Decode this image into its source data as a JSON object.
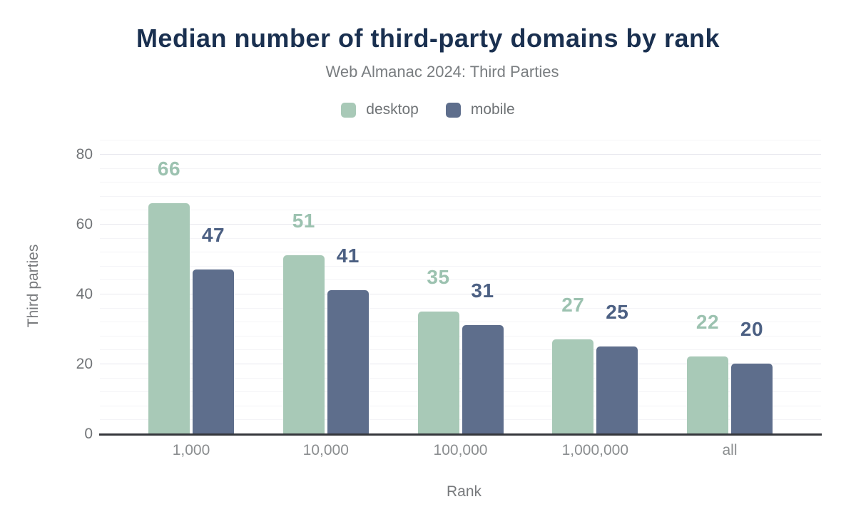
{
  "chart_data": {
    "type": "bar",
    "title": "Median number of third-party domains by rank",
    "subtitle": "Web Almanac 2024: Third Parties",
    "xlabel": "Rank",
    "ylabel": "Third parties",
    "categories": [
      "1,000",
      "10,000",
      "100,000",
      "1,000,000",
      "all"
    ],
    "series": [
      {
        "name": "desktop",
        "values": [
          66,
          51,
          35,
          27,
          22
        ],
        "color": "#a8c9b7",
        "label_color": "#9cc2b0"
      },
      {
        "name": "mobile",
        "values": [
          47,
          41,
          31,
          25,
          20
        ],
        "color": "#5e6e8c",
        "label_color": "#4c6083"
      }
    ],
    "ylim": [
      0,
      80
    ],
    "y_major_ticks": [
      0,
      20,
      40,
      60,
      80
    ],
    "y_minor_step": 4,
    "grid": "on",
    "legend_position": "top-center",
    "colors": {
      "title": "#1a3050",
      "subtitle": "#797d80",
      "y_tick_text": "#717477",
      "x_tick_text": "#8a8d8f",
      "axis_title_text": "#77797c",
      "grid_major": "#e8e8ee",
      "grid_minor": "#f4f4f7",
      "baseline": "#35373c",
      "background": "#ffffff"
    }
  }
}
